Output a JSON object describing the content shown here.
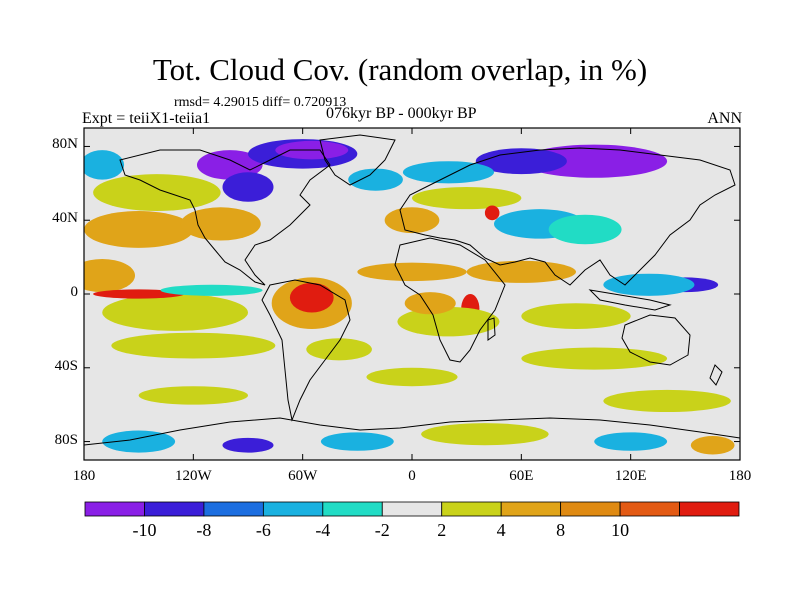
{
  "title": "Tot. Cloud Cov. (random overlap, in %)",
  "stats_line": "rmsd= 4.29015 diff= 0.720913",
  "experiment": "Expt = teiiX1-teiia1",
  "period": "076kyr BP - 000kyr BP",
  "season": "ANN",
  "y_ticks": [
    {
      "label": "80N",
      "lat": 80
    },
    {
      "label": "40N",
      "lat": 40
    },
    {
      "label": "0",
      "lat": 0
    },
    {
      "label": "40S",
      "lat": -40
    },
    {
      "label": "80S",
      "lat": -80
    }
  ],
  "x_ticks": [
    {
      "label": "180",
      "lon": -180
    },
    {
      "label": "120W",
      "lon": -120
    },
    {
      "label": "60W",
      "lon": -60
    },
    {
      "label": "0",
      "lon": 0
    },
    {
      "label": "60E",
      "lon": 60
    },
    {
      "label": "120E",
      "lon": 120
    },
    {
      "label": "180",
      "lon": 180
    }
  ],
  "colorbar": {
    "colors": [
      "#8a1fe6",
      "#3b1ed8",
      "#1c6ee0",
      "#1ab1e0",
      "#21dcc5",
      "#e6e6e6",
      "#c9d21a",
      "#e0a419",
      "#df8a12",
      "#e35a14",
      "#e01c10"
    ],
    "labels": [
      "-10",
      "-8",
      "-6",
      "-4",
      "-2",
      "2",
      "4",
      "8",
      "10"
    ]
  },
  "chart_data": {
    "type": "heatmap",
    "title": "Tot. Cloud Cov. (random overlap, in %)",
    "xlim": [
      -180,
      180
    ],
    "ylim": [
      -90,
      90
    ],
    "background_level": "-2 to 2",
    "regions": [
      {
        "level": 4,
        "color": "#c9d21a",
        "lon": -140,
        "lat": 55,
        "rx": 35,
        "ry": 10
      },
      {
        "level": -4,
        "color": "#1ab1e0",
        "lon": -170,
        "lat": 70,
        "rx": 12,
        "ry": 8
      },
      {
        "level": -10,
        "color": "#8a1fe6",
        "lon": -100,
        "lat": 70,
        "rx": 18,
        "ry": 8
      },
      {
        "level": -8,
        "color": "#3b1ed8",
        "lon": -60,
        "lat": 76,
        "rx": 30,
        "ry": 8
      },
      {
        "level": -10,
        "color": "#8a1fe6",
        "lon": -55,
        "lat": 78,
        "rx": 20,
        "ry": 5
      },
      {
        "level": -8,
        "color": "#3b1ed8",
        "lon": -90,
        "lat": 58,
        "rx": 14,
        "ry": 8
      },
      {
        "level": -4,
        "color": "#1ab1e0",
        "lon": -20,
        "lat": 62,
        "rx": 15,
        "ry": 6
      },
      {
        "level": -10,
        "color": "#8a1fe6",
        "lon": 100,
        "lat": 72,
        "rx": 40,
        "ry": 9
      },
      {
        "level": -8,
        "color": "#3b1ed8",
        "lon": 60,
        "lat": 72,
        "rx": 25,
        "ry": 7
      },
      {
        "level": -4,
        "color": "#1ab1e0",
        "lon": 20,
        "lat": 66,
        "rx": 25,
        "ry": 6
      },
      {
        "level": 4,
        "color": "#c9d21a",
        "lon": 30,
        "lat": 52,
        "rx": 30,
        "ry": 6
      },
      {
        "level": 8,
        "color": "#e0a419",
        "lon": -150,
        "lat": 35,
        "rx": 30,
        "ry": 10
      },
      {
        "level": 8,
        "color": "#e0a419",
        "lon": -105,
        "lat": 38,
        "rx": 22,
        "ry": 9
      },
      {
        "level": -4,
        "color": "#1ab1e0",
        "lon": 70,
        "lat": 38,
        "rx": 25,
        "ry": 8
      },
      {
        "level": -2,
        "color": "#21dcc5",
        "lon": 95,
        "lat": 35,
        "rx": 20,
        "ry": 8
      },
      {
        "level": 10,
        "color": "#e01c10",
        "lon": 44,
        "lat": 44,
        "rx": 4,
        "ry": 4
      },
      {
        "level": 8,
        "color": "#e0a419",
        "lon": 0,
        "lat": 40,
        "rx": 15,
        "ry": 7
      },
      {
        "level": 8,
        "color": "#e0a419",
        "lon": -170,
        "lat": 10,
        "rx": 18,
        "ry": 9
      },
      {
        "level": 4,
        "color": "#c9d21a",
        "lon": -130,
        "lat": -10,
        "rx": 40,
        "ry": 10
      },
      {
        "level": 10,
        "color": "#e01c10",
        "lon": -150,
        "lat": 0,
        "rx": 25,
        "ry": 2.5
      },
      {
        "level": -2,
        "color": "#21dcc5",
        "lon": -110,
        "lat": 2,
        "rx": 28,
        "ry": 3
      },
      {
        "level": 8,
        "color": "#e0a419",
        "lon": -55,
        "lat": -5,
        "rx": 22,
        "ry": 14
      },
      {
        "level": 10,
        "color": "#e01c10",
        "lon": -55,
        "lat": -2,
        "rx": 12,
        "ry": 8
      },
      {
        "level": 8,
        "color": "#e0a419",
        "lon": 0,
        "lat": 12,
        "rx": 30,
        "ry": 5
      },
      {
        "level": 8,
        "color": "#e0a419",
        "lon": 60,
        "lat": 12,
        "rx": 30,
        "ry": 6
      },
      {
        "level": 10,
        "color": "#e01c10",
        "lon": 32,
        "lat": -8,
        "rx": 5,
        "ry": 8
      },
      {
        "level": 4,
        "color": "#c9d21a",
        "lon": 20,
        "lat": -15,
        "rx": 28,
        "ry": 8
      },
      {
        "level": 8,
        "color": "#e0a419",
        "lon": 10,
        "lat": -5,
        "rx": 14,
        "ry": 6
      },
      {
        "level": 4,
        "color": "#c9d21a",
        "lon": 90,
        "lat": -12,
        "rx": 30,
        "ry": 7
      },
      {
        "level": -8,
        "color": "#3b1ed8",
        "lon": 150,
        "lat": 5,
        "rx": 18,
        "ry": 4
      },
      {
        "level": -4,
        "color": "#1ab1e0",
        "lon": 130,
        "lat": 5,
        "rx": 25,
        "ry": 6
      },
      {
        "level": 4,
        "color": "#c9d21a",
        "lon": -120,
        "lat": -28,
        "rx": 45,
        "ry": 7
      },
      {
        "level": 4,
        "color": "#c9d21a",
        "lon": -40,
        "lat": -30,
        "rx": 18,
        "ry": 6
      },
      {
        "level": 4,
        "color": "#c9d21a",
        "lon": 100,
        "lat": -35,
        "rx": 40,
        "ry": 6
      },
      {
        "level": 4,
        "color": "#c9d21a",
        "lon": -120,
        "lat": -55,
        "rx": 30,
        "ry": 5
      },
      {
        "level": 4,
        "color": "#c9d21a",
        "lon": 0,
        "lat": -45,
        "rx": 25,
        "ry": 5
      },
      {
        "level": 4,
        "color": "#c9d21a",
        "lon": 140,
        "lat": -58,
        "rx": 35,
        "ry": 6
      },
      {
        "level": -4,
        "color": "#1ab1e0",
        "lon": -150,
        "lat": -80,
        "rx": 20,
        "ry": 6
      },
      {
        "level": -8,
        "color": "#3b1ed8",
        "lon": -90,
        "lat": -82,
        "rx": 14,
        "ry": 4
      },
      {
        "level": -4,
        "color": "#1ab1e0",
        "lon": -30,
        "lat": -80,
        "rx": 20,
        "ry": 5
      },
      {
        "level": 4,
        "color": "#c9d21a",
        "lon": 40,
        "lat": -76,
        "rx": 35,
        "ry": 6
      },
      {
        "level": -4,
        "color": "#1ab1e0",
        "lon": 120,
        "lat": -80,
        "rx": 20,
        "ry": 5
      },
      {
        "level": 8,
        "color": "#e0a419",
        "lon": 165,
        "lat": -82,
        "rx": 12,
        "ry": 5
      }
    ]
  }
}
